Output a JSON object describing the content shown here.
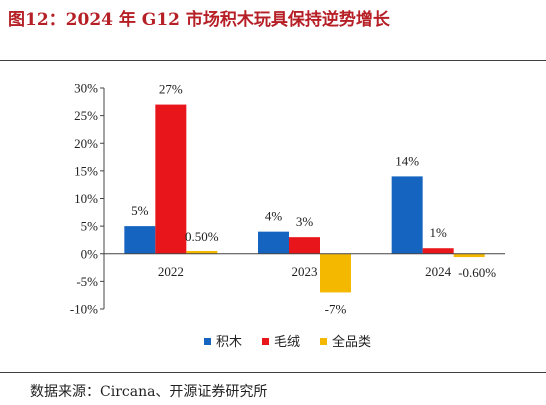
{
  "title": "图12：2024 年 G12 市场积木玩具保持逆势增长",
  "source": "数据来源：Circana、开源证券研究所",
  "chart_data": {
    "type": "bar",
    "categories": [
      "2022",
      "2023",
      "2024"
    ],
    "series": [
      {
        "name": "积木",
        "values": [
          5,
          4,
          14
        ],
        "labels": [
          "5%",
          "4%",
          "14%"
        ],
        "color": "#1565c0"
      },
      {
        "name": "毛绒",
        "values": [
          27,
          3,
          1
        ],
        "labels": [
          "27%",
          "3%",
          "1%"
        ],
        "color": "#e8151b"
      },
      {
        "name": "全品类",
        "values": [
          0.5,
          -7,
          -0.6
        ],
        "labels": [
          "0.50%",
          "-7%",
          "-0.60%"
        ],
        "color": "#f5b800"
      }
    ],
    "ylim": [
      -10,
      30
    ],
    "yticks": [
      "-10%",
      "-5%",
      "0%",
      "5%",
      "10%",
      "15%",
      "20%",
      "25%",
      "30%"
    ],
    "legend_position": "bottom",
    "grid": false
  }
}
